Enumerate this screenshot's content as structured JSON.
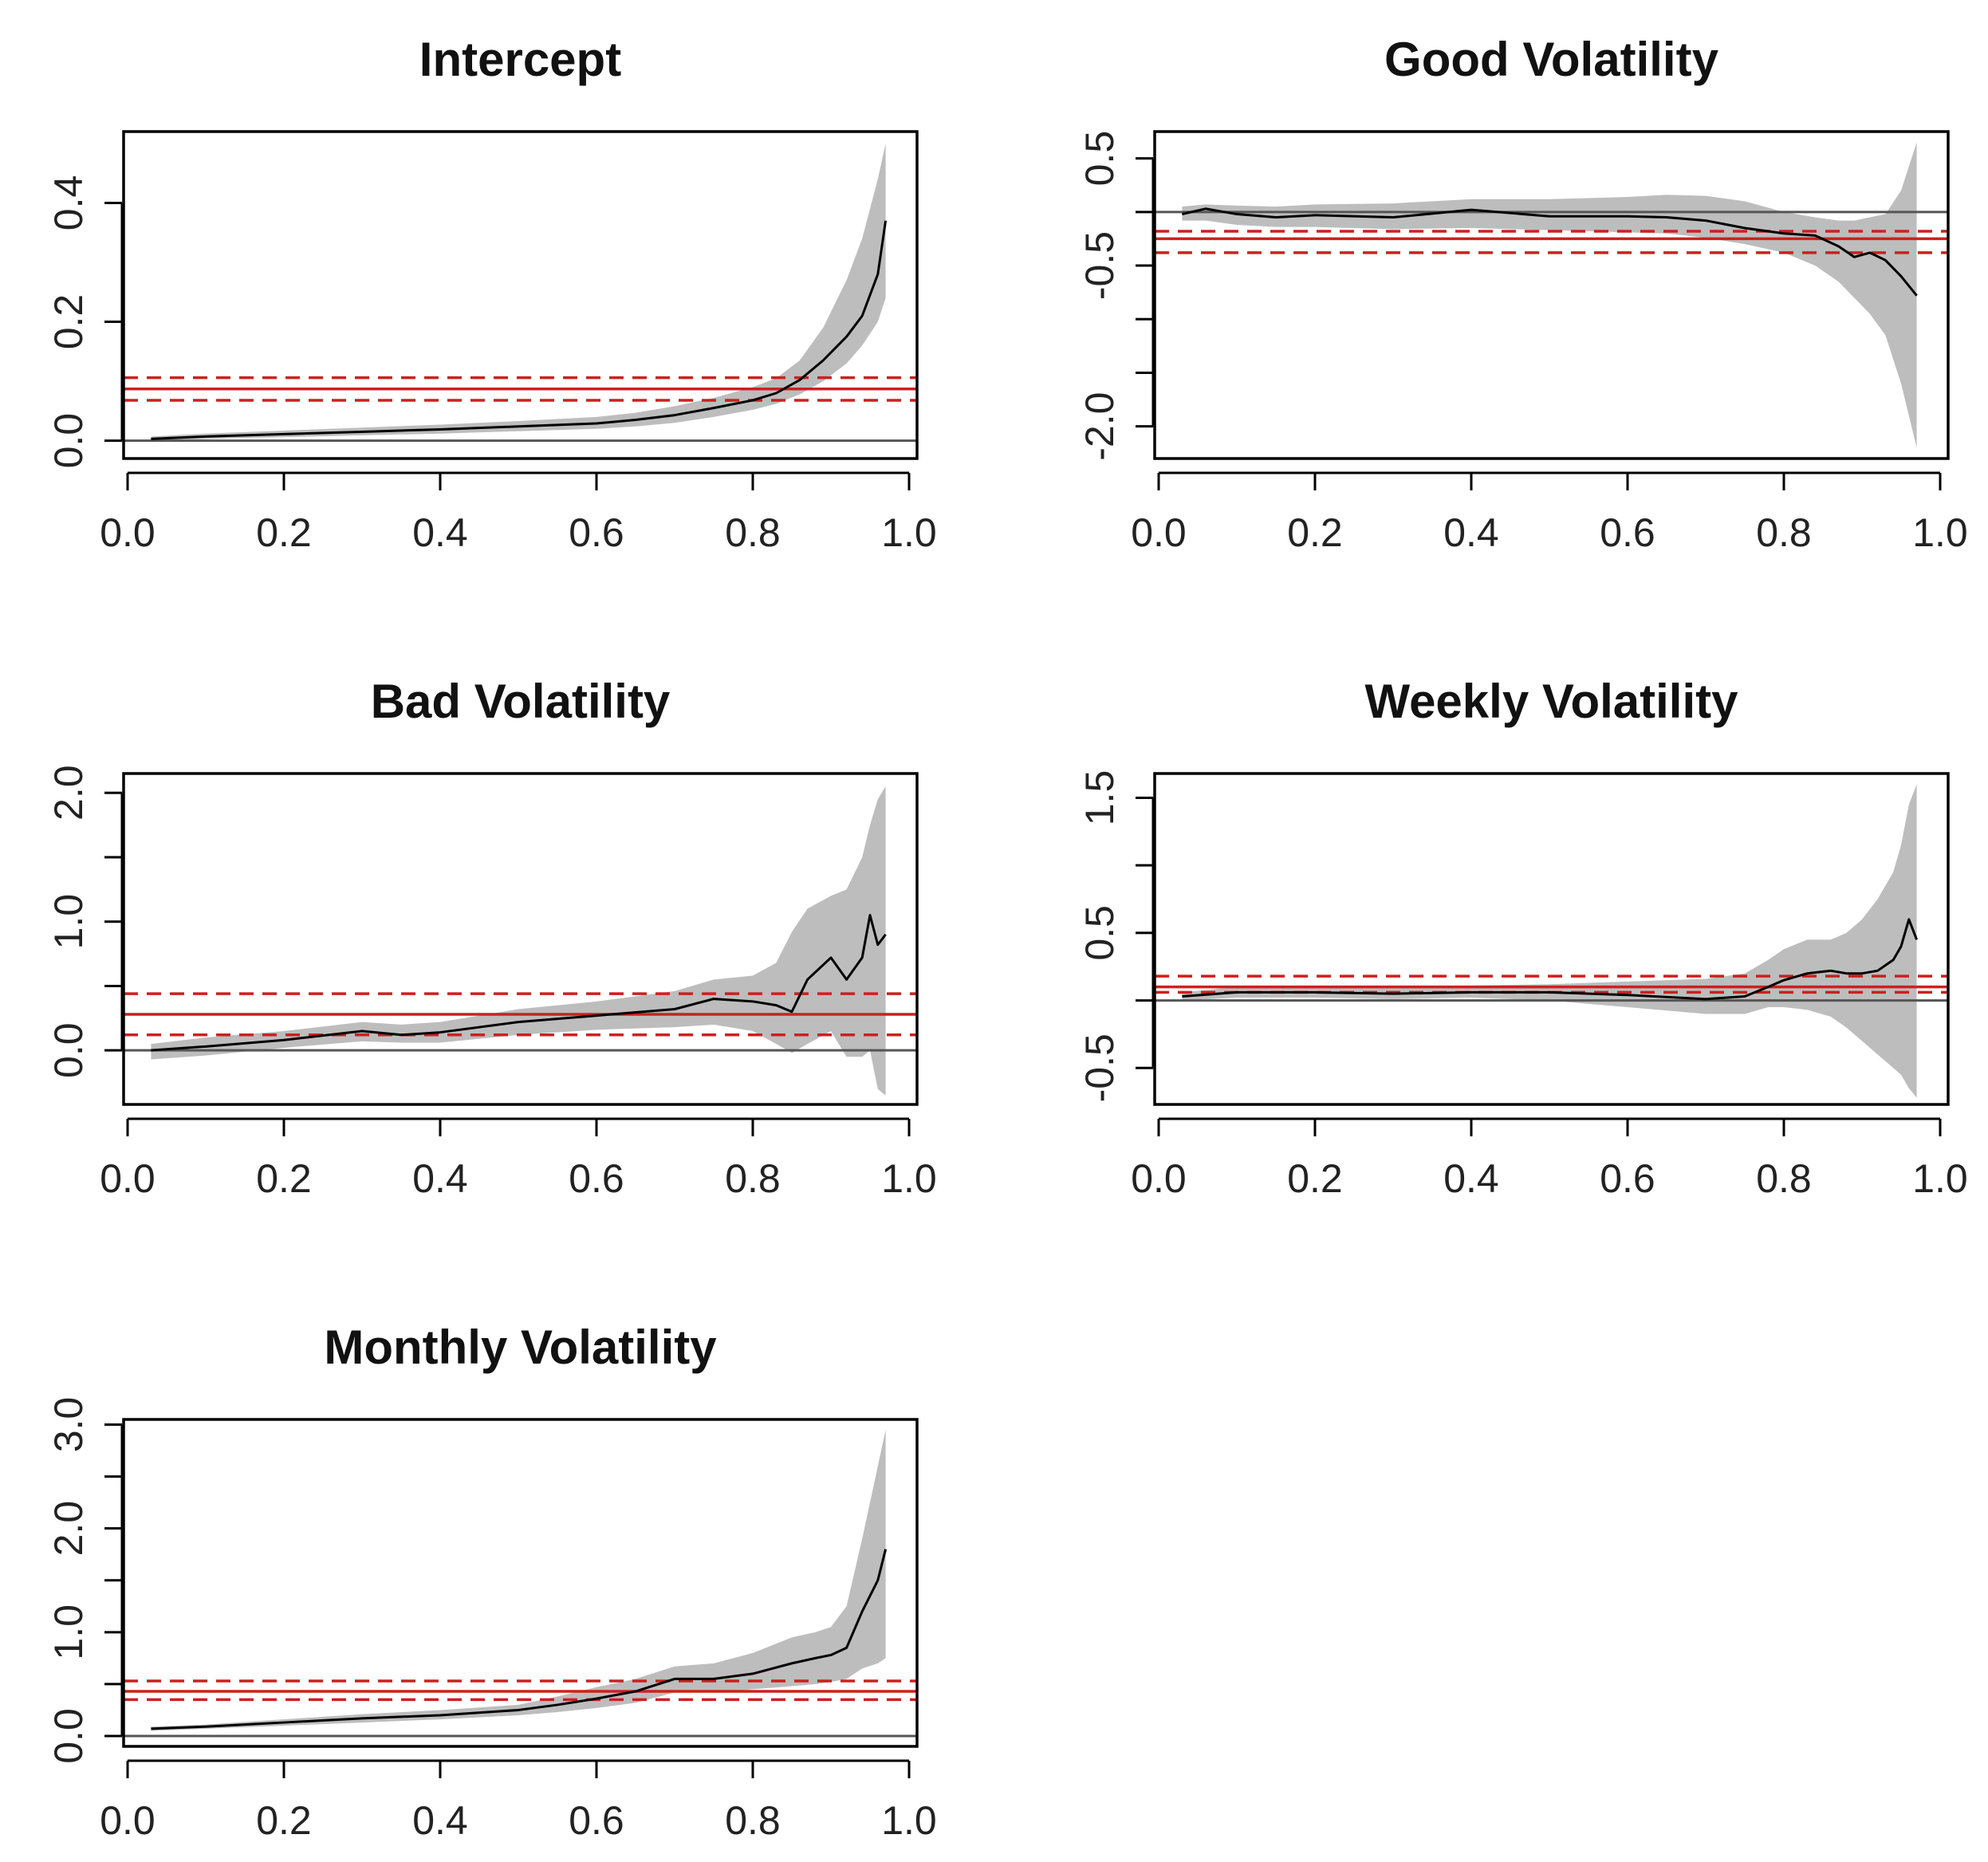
{
  "colors": {
    "band": "#bdbdbd",
    "estimate": "#000000",
    "ols": "#cc2020",
    "zero": "#555555",
    "frame": "#000000"
  },
  "chart_data": [
    {
      "type": "line",
      "title": "Intercept",
      "xlim": [
        0.0,
        1.0
      ],
      "ylim": [
        -0.03,
        0.52
      ],
      "xticks": [
        "0.0",
        "0.2",
        "0.4",
        "0.6",
        "0.8",
        "1.0"
      ],
      "yticks": [
        "0.0",
        "0.2",
        "0.4"
      ],
      "zero_line": 0.0,
      "ols_estimate": 0.087,
      "ols_ci": [
        0.068,
        0.106
      ],
      "x": [
        0.03,
        0.1,
        0.2,
        0.3,
        0.4,
        0.5,
        0.6,
        0.65,
        0.7,
        0.75,
        0.8,
        0.83,
        0.86,
        0.89,
        0.92,
        0.94,
        0.96,
        0.97
      ],
      "series": [
        {
          "values": [
            0.003,
            0.007,
            0.011,
            0.015,
            0.019,
            0.024,
            0.029,
            0.035,
            0.043,
            0.055,
            0.068,
            0.08,
            0.102,
            0.135,
            0.175,
            0.21,
            0.28,
            0.37
          ]
        }
      ],
      "band_lower": [
        0.0,
        0.003,
        0.006,
        0.009,
        0.012,
        0.016,
        0.02,
        0.024,
        0.03,
        0.04,
        0.052,
        0.062,
        0.078,
        0.1,
        0.13,
        0.16,
        0.2,
        0.24
      ],
      "band_upper": [
        0.007,
        0.012,
        0.017,
        0.022,
        0.027,
        0.033,
        0.04,
        0.047,
        0.058,
        0.072,
        0.09,
        0.105,
        0.135,
        0.19,
        0.27,
        0.34,
        0.44,
        0.5
      ]
    },
    {
      "type": "line",
      "title": "Good Volatility",
      "xlim": [
        0.0,
        1.0
      ],
      "ylim": [
        -2.3,
        0.75
      ],
      "xticks": [
        "0.0",
        "0.2",
        "0.4",
        "0.6",
        "0.8",
        "1.0"
      ],
      "yticks": [
        "-2.0",
        "-0.5",
        "0.5"
      ],
      "yticks_minor": [
        -2.0,
        -1.5,
        -1.0,
        -0.5,
        0.0,
        0.5
      ],
      "zero_line": 0.0,
      "ols_estimate": -0.25,
      "ols_ci": [
        -0.38,
        -0.18
      ],
      "x": [
        0.03,
        0.06,
        0.1,
        0.15,
        0.2,
        0.3,
        0.4,
        0.5,
        0.6,
        0.65,
        0.7,
        0.75,
        0.8,
        0.84,
        0.87,
        0.89,
        0.91,
        0.93,
        0.95,
        0.97
      ],
      "series": [
        {
          "values": [
            -0.02,
            0.03,
            -0.02,
            -0.05,
            -0.03,
            -0.05,
            0.02,
            -0.04,
            -0.04,
            -0.05,
            -0.08,
            -0.15,
            -0.2,
            -0.22,
            -0.32,
            -0.42,
            -0.38,
            -0.45,
            -0.6,
            -0.78
          ]
        }
      ],
      "band_lower": [
        -0.08,
        -0.08,
        -0.12,
        -0.14,
        -0.14,
        -0.16,
        -0.15,
        -0.17,
        -0.19,
        -0.2,
        -0.24,
        -0.3,
        -0.38,
        -0.5,
        -0.65,
        -0.8,
        -0.95,
        -1.15,
        -1.6,
        -2.2
      ],
      "band_upper": [
        0.05,
        0.07,
        0.06,
        0.05,
        0.07,
        0.08,
        0.12,
        0.12,
        0.14,
        0.16,
        0.15,
        0.1,
        0.0,
        -0.05,
        -0.08,
        -0.08,
        -0.05,
        -0.02,
        0.2,
        0.65
      ]
    },
    {
      "type": "line",
      "title": "Bad Volatility",
      "xlim": [
        0.0,
        1.0
      ],
      "ylim": [
        -0.42,
        2.15
      ],
      "xticks": [
        "0.0",
        "0.2",
        "0.4",
        "0.6",
        "0.8",
        "1.0"
      ],
      "yticks": [
        "0.0",
        "1.0",
        "2.0"
      ],
      "yticks_minor": [
        0.0,
        0.5,
        1.0,
        1.5,
        2.0
      ],
      "zero_line": 0.0,
      "ols_estimate": 0.28,
      "ols_ci": [
        0.12,
        0.44
      ],
      "x": [
        0.03,
        0.1,
        0.2,
        0.3,
        0.35,
        0.4,
        0.5,
        0.6,
        0.7,
        0.75,
        0.8,
        0.83,
        0.85,
        0.87,
        0.9,
        0.92,
        0.94,
        0.95,
        0.96,
        0.97
      ],
      "series": [
        {
          "values": [
            0.0,
            0.03,
            0.08,
            0.15,
            0.12,
            0.14,
            0.22,
            0.27,
            0.32,
            0.4,
            0.38,
            0.35,
            0.3,
            0.55,
            0.72,
            0.55,
            0.72,
            1.05,
            0.82,
            0.9
          ]
        }
      ],
      "band_lower": [
        -0.07,
        -0.04,
        0.02,
        0.07,
        0.06,
        0.06,
        0.12,
        0.16,
        0.18,
        0.2,
        0.15,
        0.05,
        -0.02,
        0.05,
        0.15,
        -0.05,
        -0.05,
        0.0,
        -0.3,
        -0.35
      ],
      "band_upper": [
        0.05,
        0.1,
        0.15,
        0.22,
        0.2,
        0.22,
        0.32,
        0.38,
        0.46,
        0.55,
        0.58,
        0.68,
        0.92,
        1.1,
        1.2,
        1.25,
        1.5,
        1.75,
        1.95,
        2.05
      ]
    },
    {
      "type": "line",
      "title": "Weekly Volatility",
      "xlim": [
        0.0,
        1.0
      ],
      "ylim": [
        -0.77,
        1.68
      ],
      "xticks": [
        "0.0",
        "0.2",
        "0.4",
        "0.6",
        "0.8",
        "1.0"
      ],
      "yticks": [
        "-0.5",
        "0.5",
        "1.5"
      ],
      "yticks_minor": [
        -0.5,
        0.0,
        0.5,
        1.0,
        1.5
      ],
      "zero_line": 0.0,
      "ols_estimate": 0.1,
      "ols_ci": [
        0.06,
        0.18
      ],
      "x": [
        0.03,
        0.1,
        0.2,
        0.3,
        0.4,
        0.5,
        0.6,
        0.7,
        0.75,
        0.78,
        0.8,
        0.83,
        0.86,
        0.88,
        0.9,
        0.92,
        0.94,
        0.95,
        0.96,
        0.97
      ],
      "series": [
        {
          "values": [
            0.03,
            0.06,
            0.06,
            0.05,
            0.06,
            0.06,
            0.04,
            0.01,
            0.03,
            0.1,
            0.15,
            0.2,
            0.22,
            0.2,
            0.2,
            0.22,
            0.3,
            0.4,
            0.6,
            0.45
          ]
        }
      ],
      "band_lower": [
        0.0,
        0.02,
        0.02,
        0.01,
        0.02,
        0.0,
        -0.05,
        -0.1,
        -0.1,
        -0.05,
        -0.05,
        -0.07,
        -0.12,
        -0.2,
        -0.3,
        -0.4,
        -0.5,
        -0.55,
        -0.65,
        -0.72
      ],
      "band_upper": [
        0.06,
        0.1,
        0.1,
        0.1,
        0.11,
        0.12,
        0.14,
        0.16,
        0.2,
        0.3,
        0.38,
        0.45,
        0.45,
        0.5,
        0.6,
        0.75,
        0.95,
        1.15,
        1.45,
        1.6
      ]
    },
    {
      "type": "line",
      "title": "Monthly Volatility",
      "xlim": [
        0.0,
        1.0
      ],
      "ylim": [
        -0.1,
        3.05
      ],
      "xticks": [
        "0.0",
        "0.2",
        "0.4",
        "0.6",
        "0.8",
        "1.0"
      ],
      "yticks": [
        "0.0",
        "1.0",
        "2.0",
        "3.0"
      ],
      "yticks_minor": [
        0.0,
        0.5,
        1.0,
        1.5,
        2.0,
        2.5,
        3.0
      ],
      "zero_line": 0.0,
      "ols_estimate": 0.43,
      "ols_ci": [
        0.35,
        0.53
      ],
      "x": [
        0.03,
        0.1,
        0.2,
        0.3,
        0.4,
        0.5,
        0.55,
        0.6,
        0.65,
        0.7,
        0.75,
        0.8,
        0.85,
        0.88,
        0.9,
        0.92,
        0.94,
        0.96,
        0.97
      ],
      "series": [
        {
          "values": [
            0.07,
            0.09,
            0.13,
            0.17,
            0.2,
            0.25,
            0.3,
            0.36,
            0.43,
            0.55,
            0.55,
            0.6,
            0.7,
            0.75,
            0.78,
            0.85,
            1.2,
            1.5,
            1.8
          ]
        }
      ],
      "band_lower": [
        0.05,
        0.07,
        0.1,
        0.13,
        0.16,
        0.2,
        0.23,
        0.27,
        0.32,
        0.42,
        0.42,
        0.45,
        0.48,
        0.5,
        0.52,
        0.55,
        0.65,
        0.7,
        0.75
      ],
      "band_upper": [
        0.09,
        0.11,
        0.16,
        0.21,
        0.25,
        0.3,
        0.38,
        0.47,
        0.55,
        0.67,
        0.7,
        0.8,
        0.95,
        1.0,
        1.05,
        1.25,
        1.9,
        2.6,
        2.95
      ]
    }
  ]
}
